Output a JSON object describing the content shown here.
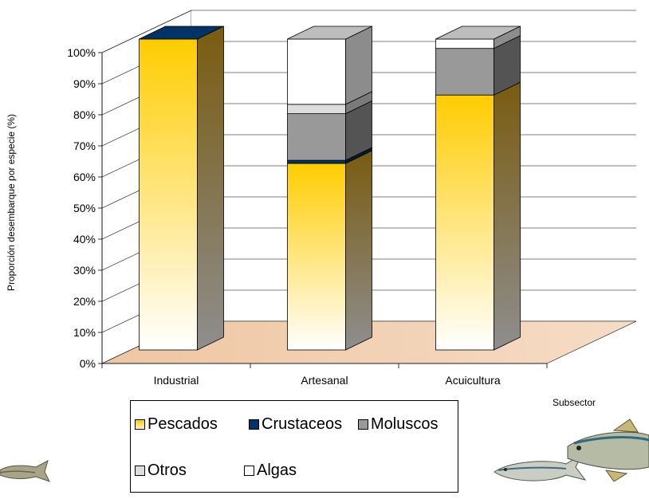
{
  "chart_data": {
    "type": "bar",
    "stacked": true,
    "categories": [
      "Industrial",
      "Artesanal",
      "Acuicultura"
    ],
    "series": [
      {
        "name": "Pescados",
        "values": [
          100,
          60,
          82
        ],
        "color": "#FFCC00"
      },
      {
        "name": "Crustaceos",
        "values": [
          0,
          1,
          0
        ],
        "color": "#003366"
      },
      {
        "name": "Moluscos",
        "values": [
          0,
          15,
          15
        ],
        "color": "#999999"
      },
      {
        "name": "Otros",
        "values": [
          0,
          3,
          0
        ],
        "color": "#DDDDDD"
      },
      {
        "name": "Algas",
        "values": [
          0,
          21,
          3
        ],
        "color": "#FFFFFF"
      }
    ],
    "yticks": [
      "0%",
      "10%",
      "20%",
      "30%",
      "40%",
      "50%",
      "60%",
      "70%",
      "80%",
      "90%",
      "100%"
    ],
    "ylim": [
      0,
      100
    ],
    "ylabel": "Proporción desembarque por especie (%)",
    "xlabel": "Subsector",
    "legend_position": "bottom",
    "grid": true,
    "floor_color": "#F0C8A8"
  }
}
